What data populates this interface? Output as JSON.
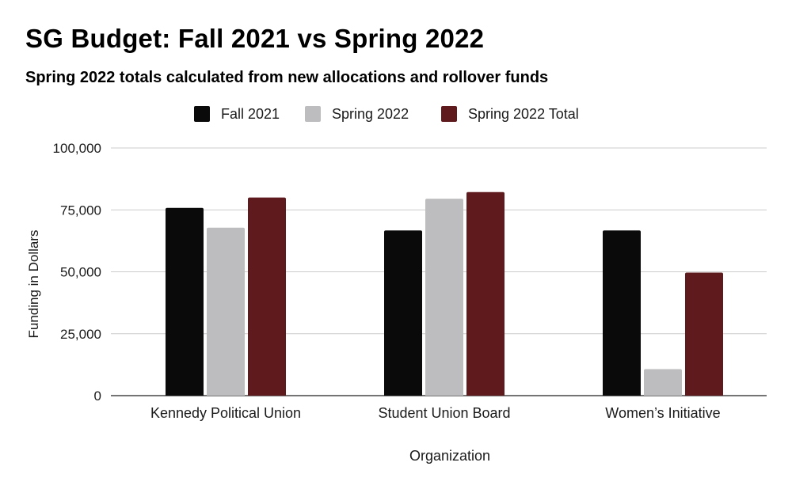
{
  "chart_data": {
    "type": "bar",
    "title": "SG Budget: Fall 2021 vs Spring 2022",
    "subtitle": "Spring 2022 totals calculated from new allocations and rollover funds",
    "xlabel": "Organization",
    "ylabel": "Funding in Dollars",
    "ylim": [
      0,
      100000
    ],
    "yticks": [
      0,
      25000,
      50000,
      75000,
      100000
    ],
    "ytick_labels": [
      "0",
      "25,000",
      "50,000",
      "75,000",
      "100,000"
    ],
    "grid": true,
    "legend_position": "top",
    "categories": [
      "Kennedy Political Union",
      "Student Union Board",
      "Women’s Initiative"
    ],
    "series": [
      {
        "name": "Fall 2021",
        "color": "#0a0a0a",
        "values": [
          75800,
          66700,
          66700
        ]
      },
      {
        "name": "Spring 2022",
        "color": "#bdbdbf",
        "values": [
          67800,
          79500,
          10700
        ]
      },
      {
        "name": "Spring 2022 Total",
        "color": "#5e1a1d",
        "values": [
          80000,
          82200,
          49700
        ]
      }
    ]
  }
}
